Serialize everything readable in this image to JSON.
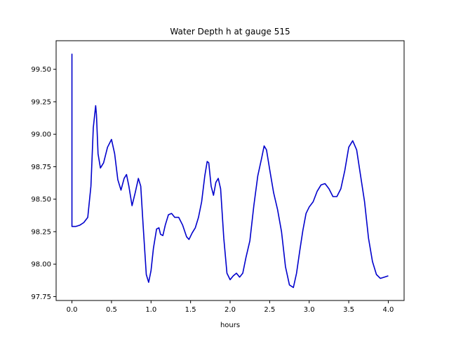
{
  "chart_data": {
    "type": "line",
    "title": "Water Depth h at gauge 515",
    "xlabel": "hours",
    "ylabel": "",
    "xlim": [
      -0.2,
      4.2
    ],
    "ylim": [
      97.72,
      99.72
    ],
    "xticks": [
      0.0,
      0.5,
      1.0,
      1.5,
      2.0,
      2.5,
      3.0,
      3.5,
      4.0
    ],
    "xtick_labels": [
      "0.0",
      "0.5",
      "1.0",
      "1.5",
      "2.0",
      "2.5",
      "3.0",
      "3.5",
      "4.0"
    ],
    "yticks": [
      97.75,
      98.0,
      98.25,
      98.5,
      98.75,
      99.0,
      99.25,
      99.5
    ],
    "ytick_labels": [
      "97.75",
      "98.00",
      "98.25",
      "98.50",
      "98.75",
      "99.00",
      "99.25",
      "99.50"
    ],
    "grid": false,
    "legend": "none",
    "series": [
      {
        "color": "#0000cc",
        "x": [
          0.0,
          0.0,
          0.002,
          0.05,
          0.1,
          0.15,
          0.2,
          0.24,
          0.27,
          0.3,
          0.31,
          0.33,
          0.36,
          0.4,
          0.45,
          0.5,
          0.54,
          0.58,
          0.62,
          0.66,
          0.69,
          0.72,
          0.76,
          0.8,
          0.84,
          0.87,
          0.9,
          0.94,
          0.97,
          1.0,
          1.03,
          1.07,
          1.1,
          1.12,
          1.15,
          1.18,
          1.22,
          1.26,
          1.3,
          1.35,
          1.4,
          1.45,
          1.48,
          1.52,
          1.56,
          1.6,
          1.64,
          1.68,
          1.71,
          1.73,
          1.76,
          1.79,
          1.82,
          1.85,
          1.88,
          1.92,
          1.96,
          2.0,
          2.04,
          2.08,
          2.12,
          2.16,
          2.2,
          2.25,
          2.3,
          2.35,
          2.4,
          2.43,
          2.46,
          2.5,
          2.55,
          2.6,
          2.65,
          2.7,
          2.75,
          2.8,
          2.84,
          2.88,
          2.92,
          2.96,
          3.0,
          3.05,
          3.1,
          3.15,
          3.2,
          3.25,
          3.3,
          3.35,
          3.4,
          3.45,
          3.5,
          3.55,
          3.6,
          3.65,
          3.7,
          3.75,
          3.8,
          3.85,
          3.9,
          3.95,
          4.0
        ],
        "y": [
          99.62,
          98.29,
          98.29,
          98.29,
          98.3,
          98.32,
          98.36,
          98.6,
          99.05,
          99.22,
          99.15,
          98.85,
          98.74,
          98.78,
          98.9,
          98.96,
          98.85,
          98.65,
          98.57,
          98.66,
          98.69,
          98.6,
          98.45,
          98.55,
          98.66,
          98.6,
          98.3,
          97.92,
          97.86,
          97.95,
          98.12,
          98.27,
          98.28,
          98.23,
          98.22,
          98.3,
          98.38,
          98.39,
          98.36,
          98.36,
          98.3,
          98.21,
          98.19,
          98.24,
          98.28,
          98.36,
          98.48,
          98.68,
          98.79,
          98.78,
          98.6,
          98.53,
          98.63,
          98.66,
          98.58,
          98.2,
          97.93,
          97.88,
          97.91,
          97.93,
          97.9,
          97.93,
          98.05,
          98.18,
          98.45,
          98.68,
          98.82,
          98.91,
          98.88,
          98.73,
          98.55,
          98.42,
          98.25,
          97.98,
          97.84,
          97.82,
          97.93,
          98.1,
          98.26,
          98.39,
          98.44,
          98.48,
          98.56,
          98.61,
          98.62,
          98.58,
          98.52,
          98.52,
          98.58,
          98.72,
          98.9,
          98.95,
          98.88,
          98.68,
          98.48,
          98.2,
          98.02,
          97.92,
          97.89,
          97.9,
          97.91
        ]
      }
    ]
  }
}
